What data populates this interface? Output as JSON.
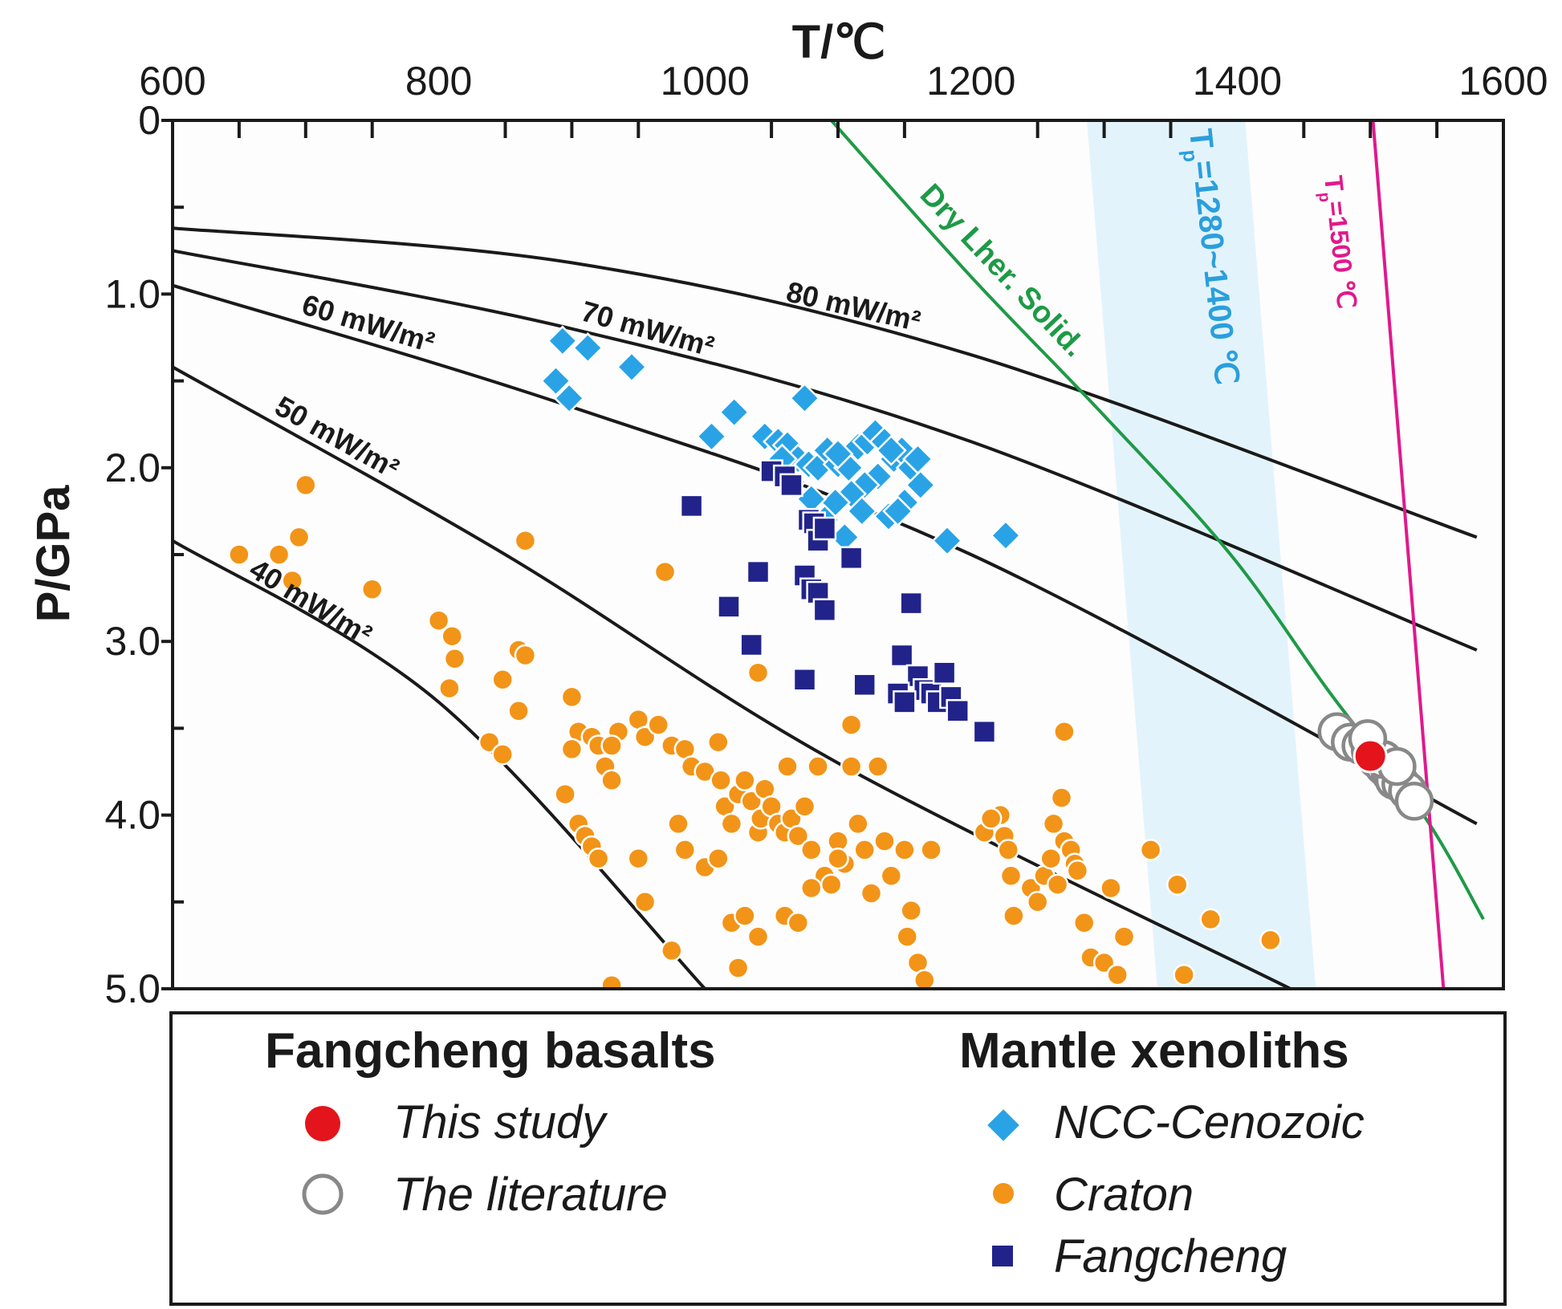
{
  "chart_data": {
    "type": "scatter",
    "xlabel": "T/℃",
    "ylabel": "P/GPa",
    "xlim": [
      600,
      1600
    ],
    "ylim": [
      0,
      5.0
    ],
    "x_axis_position": "top",
    "y_inverted": true,
    "x_ticks": [
      "600",
      "800",
      "1000",
      "1200",
      "1400",
      "1600"
    ],
    "y_ticks": [
      "0",
      "1.0",
      "2.0",
      "3.0",
      "4.0",
      "5.0"
    ],
    "colors": {
      "geotherm": "#1a1a1a",
      "solidus": "#1e9a46",
      "tp_band_fill": "#e3f3fc",
      "tp_band_text": "#2a9fdc",
      "tp1500": "#e0198c",
      "this_study": "#e3141b",
      "literature_stroke": "#888888",
      "ncc": "#29a3e6",
      "craton": "#f29418",
      "fangcheng": "#21238a"
    },
    "geotherms": [
      {
        "label": "40 mW/m²",
        "points": [
          [
            600,
            2.42
          ],
          [
            800,
            3.35
          ],
          [
            1000,
            5.0
          ]
        ]
      },
      {
        "label": "50 mW/m²",
        "points": [
          [
            600,
            1.42
          ],
          [
            850,
            2.5
          ],
          [
            1100,
            3.7
          ],
          [
            1440,
            5.0
          ]
        ]
      },
      {
        "label": "60 mW/m²",
        "points": [
          [
            600,
            0.95
          ],
          [
            900,
            1.65
          ],
          [
            1200,
            2.5
          ],
          [
            1580,
            4.05
          ]
        ]
      },
      {
        "label": "70 mW/m²",
        "points": [
          [
            600,
            0.75
          ],
          [
            900,
            1.2
          ],
          [
            1200,
            1.85
          ],
          [
            1580,
            3.05
          ]
        ]
      },
      {
        "label": "80 mW/m²",
        "points": [
          [
            600,
            0.62
          ],
          [
            900,
            0.82
          ],
          [
            1200,
            1.35
          ],
          [
            1580,
            2.4
          ]
        ]
      }
    ],
    "solidus": {
      "label": "Dry Lher. Solid.",
      "points": [
        [
          1095,
          0
        ],
        [
          1200,
          0.9
        ],
        [
          1300,
          1.7
        ],
        [
          1395,
          2.5
        ],
        [
          1470,
          3.3
        ],
        [
          1540,
          4.0
        ],
        [
          1585,
          4.6
        ]
      ]
    },
    "tp_band": {
      "label": "Tₚ=1280~1400 ℃",
      "label_main": "T",
      "label_sub": "p",
      "label_rest": "=1280~1400 ℃",
      "polygon": [
        [
          1287,
          0
        ],
        [
          1406,
          0
        ],
        [
          1459,
          5.0
        ],
        [
          1340,
          5.0
        ]
      ]
    },
    "tp1500": {
      "label": "Tₚ=1500 ℃",
      "label_main": "T",
      "label_sub": "p",
      "label_rest": "=1500 ℃",
      "points": [
        [
          1502,
          0
        ],
        [
          1555,
          5.0
        ]
      ]
    },
    "series": [
      {
        "name": "This study",
        "group": "Fangcheng basalts",
        "marker": "circle",
        "points": [
          [
            1500,
            3.66
          ]
        ]
      },
      {
        "name": "The literature",
        "group": "Fangcheng basalts",
        "marker": "open-circle",
        "points": [
          [
            1475,
            3.52
          ],
          [
            1485,
            3.58
          ],
          [
            1493,
            3.6
          ],
          [
            1500,
            3.63
          ],
          [
            1505,
            3.68
          ],
          [
            1510,
            3.72
          ],
          [
            1515,
            3.76
          ],
          [
            1518,
            3.8
          ],
          [
            1523,
            3.82
          ],
          [
            1528,
            3.86
          ],
          [
            1533,
            3.92
          ],
          [
            1510,
            3.68
          ],
          [
            1498,
            3.56
          ],
          [
            1520,
            3.72
          ]
        ]
      },
      {
        "name": "NCC-Cenozoic",
        "group": "Mantle xenoliths",
        "marker": "diamond",
        "points": [
          [
            893,
            1.27
          ],
          [
            912,
            1.31
          ],
          [
            888,
            1.5
          ],
          [
            898,
            1.6
          ],
          [
            945,
            1.42
          ],
          [
            1075,
            1.6
          ],
          [
            1022,
            1.68
          ],
          [
            1005,
            1.82
          ],
          [
            1045,
            1.82
          ],
          [
            1055,
            1.85
          ],
          [
            1062,
            1.87
          ],
          [
            1070,
            1.95
          ],
          [
            1078,
            1.98
          ],
          [
            1085,
            2.0
          ],
          [
            1092,
            1.9
          ],
          [
            1100,
            1.98
          ],
          [
            1108,
            2.0
          ],
          [
            1115,
            1.88
          ],
          [
            1122,
            1.85
          ],
          [
            1128,
            1.8
          ],
          [
            1135,
            1.85
          ],
          [
            1142,
            1.95
          ],
          [
            1148,
            1.9
          ],
          [
            1155,
            2.0
          ],
          [
            1160,
            1.95
          ],
          [
            1162,
            2.1
          ],
          [
            1150,
            2.2
          ],
          [
            1138,
            2.28
          ],
          [
            1130,
            2.05
          ],
          [
            1120,
            2.1
          ],
          [
            1110,
            2.15
          ],
          [
            1098,
            2.2
          ],
          [
            1090,
            2.3
          ],
          [
            1080,
            2.18
          ],
          [
            1065,
            2.08
          ],
          [
            1058,
            1.95
          ],
          [
            1105,
            2.4
          ],
          [
            1118,
            2.25
          ],
          [
            1145,
            2.25
          ],
          [
            1182,
            2.42
          ],
          [
            1226,
            2.39
          ],
          [
            1140,
            1.9
          ],
          [
            1100,
            1.92
          ]
        ]
      },
      {
        "name": "Craton",
        "group": "Mantle xenoliths",
        "marker": "circle",
        "points": [
          [
            700,
            2.1
          ],
          [
            650,
            2.5
          ],
          [
            680,
            2.5
          ],
          [
            695,
            2.4
          ],
          [
            690,
            2.65
          ],
          [
            750,
            2.7
          ],
          [
            800,
            2.88
          ],
          [
            810,
            2.97
          ],
          [
            812,
            3.1
          ],
          [
            808,
            3.27
          ],
          [
            860,
            3.05
          ],
          [
            865,
            3.08
          ],
          [
            848,
            3.22
          ],
          [
            860,
            3.4
          ],
          [
            838,
            3.58
          ],
          [
            848,
            3.65
          ],
          [
            865,
            2.42
          ],
          [
            900,
            3.32
          ],
          [
            970,
            2.6
          ],
          [
            905,
            3.52
          ],
          [
            915,
            3.55
          ],
          [
            920,
            3.6
          ],
          [
            925,
            3.72
          ],
          [
            930,
            3.8
          ],
          [
            935,
            3.52
          ],
          [
            950,
            3.45
          ],
          [
            955,
            3.55
          ],
          [
            965,
            3.48
          ],
          [
            975,
            3.6
          ],
          [
            985,
            3.62
          ],
          [
            990,
            3.72
          ],
          [
            1000,
            3.75
          ],
          [
            1010,
            3.58
          ],
          [
            1012,
            3.8
          ],
          [
            1015,
            3.95
          ],
          [
            1020,
            4.05
          ],
          [
            1025,
            3.88
          ],
          [
            1030,
            3.8
          ],
          [
            1035,
            3.92
          ],
          [
            1040,
            4.1
          ],
          [
            1042,
            4.02
          ],
          [
            1045,
            3.85
          ],
          [
            1050,
            3.95
          ],
          [
            1055,
            4.05
          ],
          [
            1060,
            4.1
          ],
          [
            1062,
            3.72
          ],
          [
            1065,
            4.02
          ],
          [
            1070,
            4.12
          ],
          [
            1075,
            3.95
          ],
          [
            1080,
            4.2
          ],
          [
            1085,
            3.72
          ],
          [
            1090,
            4.35
          ],
          [
            1095,
            4.4
          ],
          [
            1100,
            4.15
          ],
          [
            1105,
            4.28
          ],
          [
            1110,
            3.72
          ],
          [
            1115,
            4.05
          ],
          [
            1120,
            4.2
          ],
          [
            1125,
            4.45
          ],
          [
            1130,
            3.72
          ],
          [
            1135,
            4.15
          ],
          [
            1140,
            4.35
          ],
          [
            1150,
            4.2
          ],
          [
            1152,
            4.7
          ],
          [
            1155,
            4.55
          ],
          [
            1160,
            4.85
          ],
          [
            1165,
            4.95
          ],
          [
            1170,
            4.2
          ],
          [
            1110,
            3.48
          ],
          [
            1040,
            3.18
          ],
          [
            900,
            3.62
          ],
          [
            895,
            3.88
          ],
          [
            905,
            4.05
          ],
          [
            910,
            4.12
          ],
          [
            915,
            4.18
          ],
          [
            920,
            4.25
          ],
          [
            930,
            3.6
          ],
          [
            950,
            4.25
          ],
          [
            955,
            4.5
          ],
          [
            975,
            4.78
          ],
          [
            980,
            4.05
          ],
          [
            985,
            4.2
          ],
          [
            1000,
            4.3
          ],
          [
            1010,
            4.25
          ],
          [
            1020,
            4.62
          ],
          [
            1025,
            4.88
          ],
          [
            1030,
            4.58
          ],
          [
            1040,
            4.7
          ],
          [
            1060,
            4.58
          ],
          [
            1070,
            4.62
          ],
          [
            1080,
            4.42
          ],
          [
            1100,
            4.25
          ],
          [
            1222,
            4.0
          ],
          [
            1225,
            4.12
          ],
          [
            1228,
            4.2
          ],
          [
            1230,
            4.35
          ],
          [
            1232,
            4.58
          ],
          [
            1245,
            4.42
          ],
          [
            1250,
            4.5
          ],
          [
            1255,
            4.35
          ],
          [
            1260,
            4.25
          ],
          [
            1265,
            4.4
          ],
          [
            1262,
            4.05
          ],
          [
            1268,
            3.9
          ],
          [
            1270,
            4.15
          ],
          [
            1275,
            4.2
          ],
          [
            1278,
            4.28
          ],
          [
            1280,
            4.32
          ],
          [
            1270,
            3.52
          ],
          [
            1285,
            4.62
          ],
          [
            1290,
            4.82
          ],
          [
            1300,
            4.85
          ],
          [
            1310,
            4.92
          ],
          [
            1315,
            4.7
          ],
          [
            1305,
            4.42
          ],
          [
            1335,
            4.2
          ],
          [
            1355,
            4.4
          ],
          [
            1360,
            4.92
          ],
          [
            1380,
            4.6
          ],
          [
            1425,
            4.72
          ],
          [
            930,
            4.98
          ],
          [
            1210,
            4.1
          ],
          [
            1215,
            4.02
          ]
        ]
      },
      {
        "name": "Fangcheng",
        "group": "Mantle xenoliths",
        "marker": "square",
        "points": [
          [
            1050,
            2.02
          ],
          [
            1060,
            2.05
          ],
          [
            1065,
            2.1
          ],
          [
            1078,
            2.3
          ],
          [
            1082,
            2.32
          ],
          [
            1085,
            2.42
          ],
          [
            1090,
            2.35
          ],
          [
            990,
            2.22
          ],
          [
            1110,
            2.52
          ],
          [
            1040,
            2.6
          ],
          [
            1075,
            2.62
          ],
          [
            1080,
            2.7
          ],
          [
            1085,
            2.72
          ],
          [
            1090,
            2.82
          ],
          [
            1018,
            2.8
          ],
          [
            1035,
            3.02
          ],
          [
            1120,
            3.25
          ],
          [
            1148,
            3.08
          ],
          [
            1155,
            2.78
          ],
          [
            1160,
            3.2
          ],
          [
            1165,
            3.28
          ],
          [
            1170,
            3.3
          ],
          [
            1175,
            3.35
          ],
          [
            1185,
            3.32
          ],
          [
            1190,
            3.4
          ],
          [
            1145,
            3.3
          ],
          [
            1150,
            3.35
          ],
          [
            1180,
            3.18
          ],
          [
            1075,
            3.22
          ],
          [
            1210,
            3.52
          ]
        ]
      }
    ],
    "legend": {
      "left_heading": "Fangcheng basalts",
      "right_heading": "Mantle xenoliths",
      "items": [
        "This study",
        "The literature",
        "NCC-Cenozoic",
        "Craton",
        "Fangcheng"
      ]
    }
  }
}
